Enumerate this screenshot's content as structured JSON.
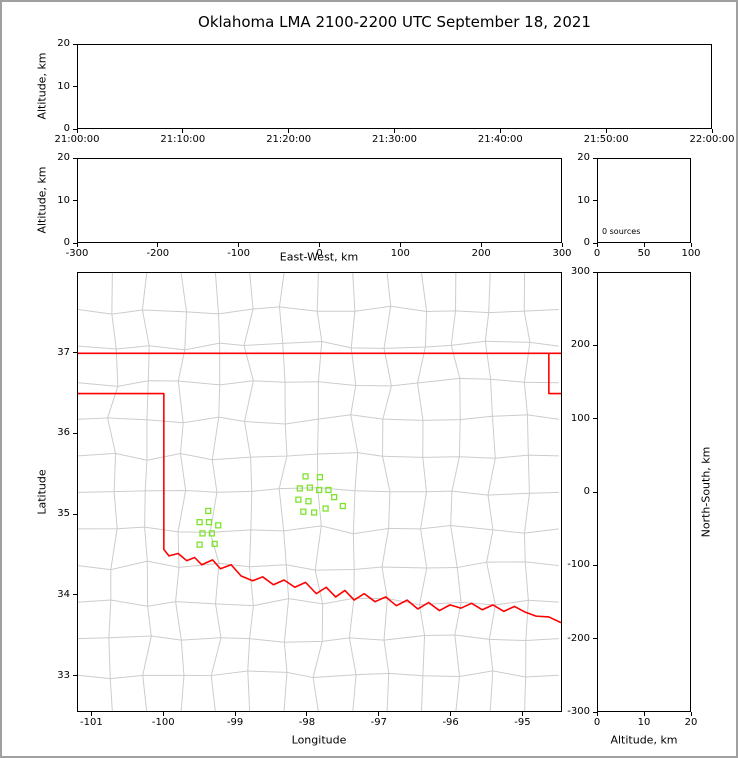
{
  "title": "Oklahoma LMA 2100-2200 UTC September 18, 2021",
  "colors": {
    "background": "#ffffff",
    "frame": "#a0a0a0",
    "axis": "#000000",
    "county_line": "#cccccc",
    "state_border": "#ff0000",
    "station": "#7de32d"
  },
  "panels": {
    "time": {
      "ylabel": "Altitude, km",
      "yticks": [
        "0",
        "10",
        "20"
      ],
      "xticks": [
        "21:00:00",
        "21:10:00",
        "21:20:00",
        "21:30:00",
        "21:40:00",
        "21:50:00",
        "22:00:00"
      ]
    },
    "ew": {
      "xlabel": "East-West, km",
      "ylabel": "Altitude, km",
      "xticks": [
        "-300",
        "-200",
        "-100",
        "0",
        "100",
        "200",
        "300"
      ],
      "yticks": [
        "0",
        "10",
        "20"
      ]
    },
    "hist": {
      "xticks": [
        "0",
        "50",
        "100"
      ],
      "yticks": [
        "0",
        "10",
        "20"
      ],
      "annotation": "0 sources"
    },
    "map": {
      "xlabel": "Longitude",
      "ylabel": "Latitude",
      "xticks": [
        "-101",
        "-100",
        "-99",
        "-98",
        "-97",
        "-96",
        "-95"
      ],
      "yticks": [
        "33",
        "34",
        "35",
        "36",
        "37"
      ]
    },
    "ns": {
      "xlabel": "Altitude, km",
      "ylabel": "North-South, km",
      "xticks": [
        "0",
        "10",
        "20"
      ],
      "yticks": [
        "-300",
        "-200",
        "-100",
        "0",
        "100",
        "200",
        "300"
      ]
    }
  },
  "chart_data": [
    {
      "key": "time",
      "type": "scatter",
      "x_axis": "Time (UTC), 21:00:00 to 22:00:00",
      "ylabel": "Altitude, km",
      "xlim": [
        0,
        60
      ],
      "xtick_vals": [
        0,
        10,
        20,
        30,
        40,
        50,
        60
      ],
      "ylim": [
        0,
        20
      ],
      "ytick_vals": [
        0,
        10,
        20
      ],
      "points": []
    },
    {
      "key": "ew",
      "type": "scatter",
      "xlabel": "East-West, km",
      "ylabel": "Altitude, km",
      "xlim": [
        -300,
        300
      ],
      "xtick_vals": [
        -300,
        -200,
        -100,
        0,
        100,
        200,
        300
      ],
      "ylim": [
        0,
        20
      ],
      "ytick_vals": [
        0,
        10,
        20
      ],
      "points": []
    },
    {
      "key": "hist",
      "type": "histogram",
      "xlim": [
        0,
        100
      ],
      "xtick_vals": [
        0,
        50,
        100
      ],
      "ylim": [
        0,
        20
      ],
      "ytick_vals": [
        0,
        10,
        20
      ],
      "annotation": "0 sources",
      "values": []
    },
    {
      "key": "map",
      "type": "scatter",
      "xlabel": "Longitude",
      "ylabel": "Latitude",
      "xlim": [
        -101.2,
        -94.45
      ],
      "xtick_vals": [
        -101,
        -100,
        -99,
        -98,
        -97,
        -96,
        -95
      ],
      "ylim": [
        32.55,
        38.0
      ],
      "ytick_vals": [
        33,
        34,
        35,
        36,
        37
      ],
      "points": [],
      "stations": [
        [
          -98.02,
          35.47
        ],
        [
          -97.82,
          35.46
        ],
        [
          -98.1,
          35.32
        ],
        [
          -97.96,
          35.33
        ],
        [
          -97.83,
          35.3
        ],
        [
          -97.7,
          35.3
        ],
        [
          -98.12,
          35.18
        ],
        [
          -97.98,
          35.16
        ],
        [
          -97.62,
          35.21
        ],
        [
          -98.05,
          35.03
        ],
        [
          -97.9,
          35.02
        ],
        [
          -97.74,
          35.07
        ],
        [
          -97.5,
          35.1
        ],
        [
          -99.38,
          35.04
        ],
        [
          -99.5,
          34.9
        ],
        [
          -99.37,
          34.9
        ],
        [
          -99.24,
          34.86
        ],
        [
          -99.46,
          34.76
        ],
        [
          -99.33,
          34.76
        ],
        [
          -99.5,
          34.62
        ],
        [
          -99.29,
          34.63
        ]
      ],
      "state_border_polylines": [
        [
          [
            -101.2,
            37.0
          ],
          [
            -94.45,
            37.0
          ]
        ],
        [
          [
            -94.62,
            37.0
          ],
          [
            -94.62,
            36.5
          ],
          [
            -94.45,
            36.5
          ]
        ],
        [
          [
            -101.2,
            36.5
          ],
          [
            -100.0,
            36.5
          ],
          [
            -100.0,
            34.56
          ],
          [
            -99.93,
            34.48
          ],
          [
            -99.8,
            34.51
          ],
          [
            -99.68,
            34.42
          ],
          [
            -99.57,
            34.46
          ],
          [
            -99.47,
            34.37
          ],
          [
            -99.32,
            34.43
          ],
          [
            -99.21,
            34.32
          ],
          [
            -99.06,
            34.37
          ],
          [
            -98.92,
            34.23
          ],
          [
            -98.76,
            34.17
          ],
          [
            -98.62,
            34.22
          ],
          [
            -98.47,
            34.12
          ],
          [
            -98.32,
            34.18
          ],
          [
            -98.17,
            34.09
          ],
          [
            -98.02,
            34.15
          ],
          [
            -97.87,
            34.01
          ],
          [
            -97.73,
            34.09
          ],
          [
            -97.6,
            33.97
          ],
          [
            -97.47,
            34.05
          ],
          [
            -97.34,
            33.93
          ],
          [
            -97.2,
            34.01
          ],
          [
            -97.05,
            33.91
          ],
          [
            -96.9,
            33.97
          ],
          [
            -96.75,
            33.86
          ],
          [
            -96.6,
            33.93
          ],
          [
            -96.45,
            33.82
          ],
          [
            -96.3,
            33.9
          ],
          [
            -96.15,
            33.8
          ],
          [
            -96.0,
            33.87
          ],
          [
            -95.85,
            33.83
          ],
          [
            -95.7,
            33.89
          ],
          [
            -95.55,
            33.81
          ],
          [
            -95.4,
            33.87
          ],
          [
            -95.25,
            33.79
          ],
          [
            -95.1,
            33.85
          ],
          [
            -94.95,
            33.78
          ],
          [
            -94.8,
            33.73
          ],
          [
            -94.62,
            33.72
          ],
          [
            -94.45,
            33.65
          ]
        ]
      ]
    },
    {
      "key": "ns",
      "type": "scatter",
      "xlabel": "Altitude, km",
      "ylabel": "North-South, km",
      "xlim": [
        0,
        20
      ],
      "xtick_vals": [
        0,
        10,
        20
      ],
      "ylim": [
        -300,
        300
      ],
      "ytick_vals": [
        -300,
        -200,
        -100,
        0,
        100,
        200,
        300
      ],
      "points": []
    }
  ]
}
